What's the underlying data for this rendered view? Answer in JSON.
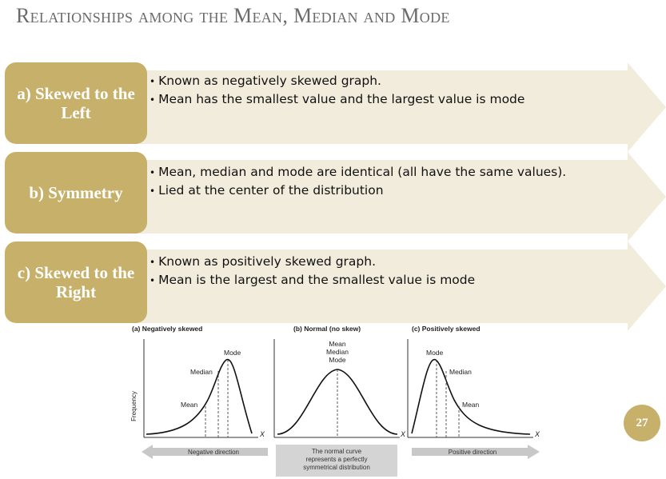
{
  "slide": {
    "title": "Relationships among the Mean, Median and Mode",
    "page_number": "27",
    "colors": {
      "accent": "#c6b06a",
      "arrow_fill": "#f1ecdc",
      "title": "#6b6b6b"
    }
  },
  "rows": [
    {
      "label": "a) Skewed to the Left",
      "bullets": [
        "Known as negatively skewed graph.",
        "Mean has the smallest value and the largest value is mode"
      ]
    },
    {
      "label": "b) Symmetry",
      "bullets": [
        "Mean, median and mode are identical (all have the same values).",
        "Lied at the center of the distribution"
      ]
    },
    {
      "label": "c) Skewed to the Right",
      "bullets": [
        "Known as positively skewed graph.",
        "Mean is the largest and the smallest value is mode"
      ]
    }
  ],
  "figure": {
    "panels": [
      {
        "title": "(a) Negatively skewed",
        "labels": [
          "Mode",
          "Median",
          "Mean"
        ],
        "x_axis": "X"
      },
      {
        "title": "(b) Normal (no skew)",
        "labels": [
          "Mean",
          "Median",
          "Mode"
        ],
        "x_axis": "X"
      },
      {
        "title": "(c) Positively skewed",
        "labels": [
          "Mode",
          "Median",
          "Mean"
        ],
        "x_axis": "X"
      }
    ],
    "y_axis_label": "Frequency",
    "negative_direction": "Negative direction",
    "positive_direction": "Positive direction",
    "caption_lines": [
      "The normal curve",
      "represents a perfectly",
      "symmetrical distribution"
    ]
  }
}
